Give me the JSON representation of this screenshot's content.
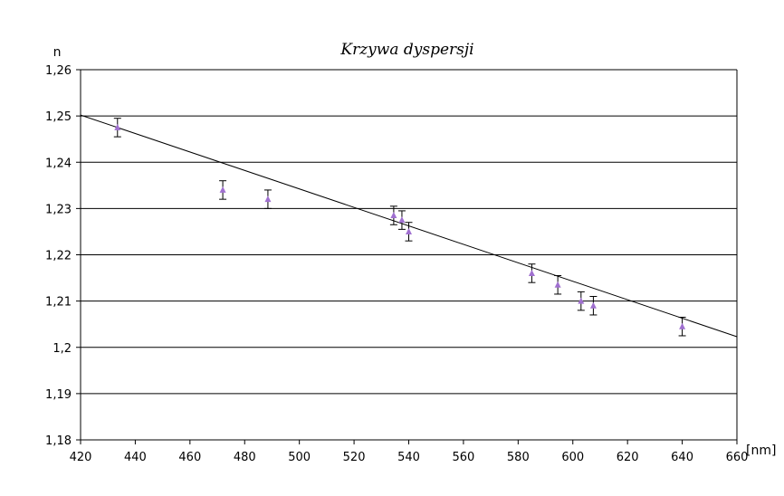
{
  "chart_data": {
    "type": "scatter",
    "title": "Krzywa dyspersji",
    "ylabel": "n",
    "xlabel": "[nm]",
    "xlim": [
      420,
      660
    ],
    "ylim": [
      1.18,
      1.26
    ],
    "x_ticks": [
      420,
      440,
      460,
      480,
      500,
      520,
      540,
      560,
      580,
      600,
      620,
      640,
      660
    ],
    "y_ticks": [
      1.18,
      1.19,
      1.2,
      1.21,
      1.22,
      1.23,
      1.24,
      1.25,
      1.26
    ],
    "x_tick_labels": [
      "420",
      "440",
      "460",
      "480",
      "500",
      "520",
      "540",
      "560",
      "580",
      "600",
      "620",
      "640",
      "660"
    ],
    "y_tick_labels": [
      "1,18",
      "1,19",
      "1,2",
      "1,21",
      "1,22",
      "1,23",
      "1,24",
      "1,25",
      "1,26"
    ],
    "grid": true,
    "marker_color": "#a070d0",
    "series": [
      {
        "points": [
          {
            "x": 433.5,
            "y": 1.2475,
            "err": 0.002
          },
          {
            "x": 472,
            "y": 1.234,
            "err": 0.002
          },
          {
            "x": 488.5,
            "y": 1.232,
            "err": 0.002
          },
          {
            "x": 534.5,
            "y": 1.2285,
            "err": 0.002
          },
          {
            "x": 537.5,
            "y": 1.2275,
            "err": 0.002
          },
          {
            "x": 540,
            "y": 1.225,
            "err": 0.002
          },
          {
            "x": 585,
            "y": 1.216,
            "err": 0.002
          },
          {
            "x": 594.5,
            "y": 1.2135,
            "err": 0.002
          },
          {
            "x": 603,
            "y": 1.21,
            "err": 0.002
          },
          {
            "x": 607.5,
            "y": 1.209,
            "err": 0.002
          },
          {
            "x": 640,
            "y": 1.2045,
            "err": 0.002
          }
        ]
      }
    ],
    "trendline": {
      "x": [
        420,
        660
      ],
      "y": [
        1.2502,
        1.2023
      ]
    }
  }
}
